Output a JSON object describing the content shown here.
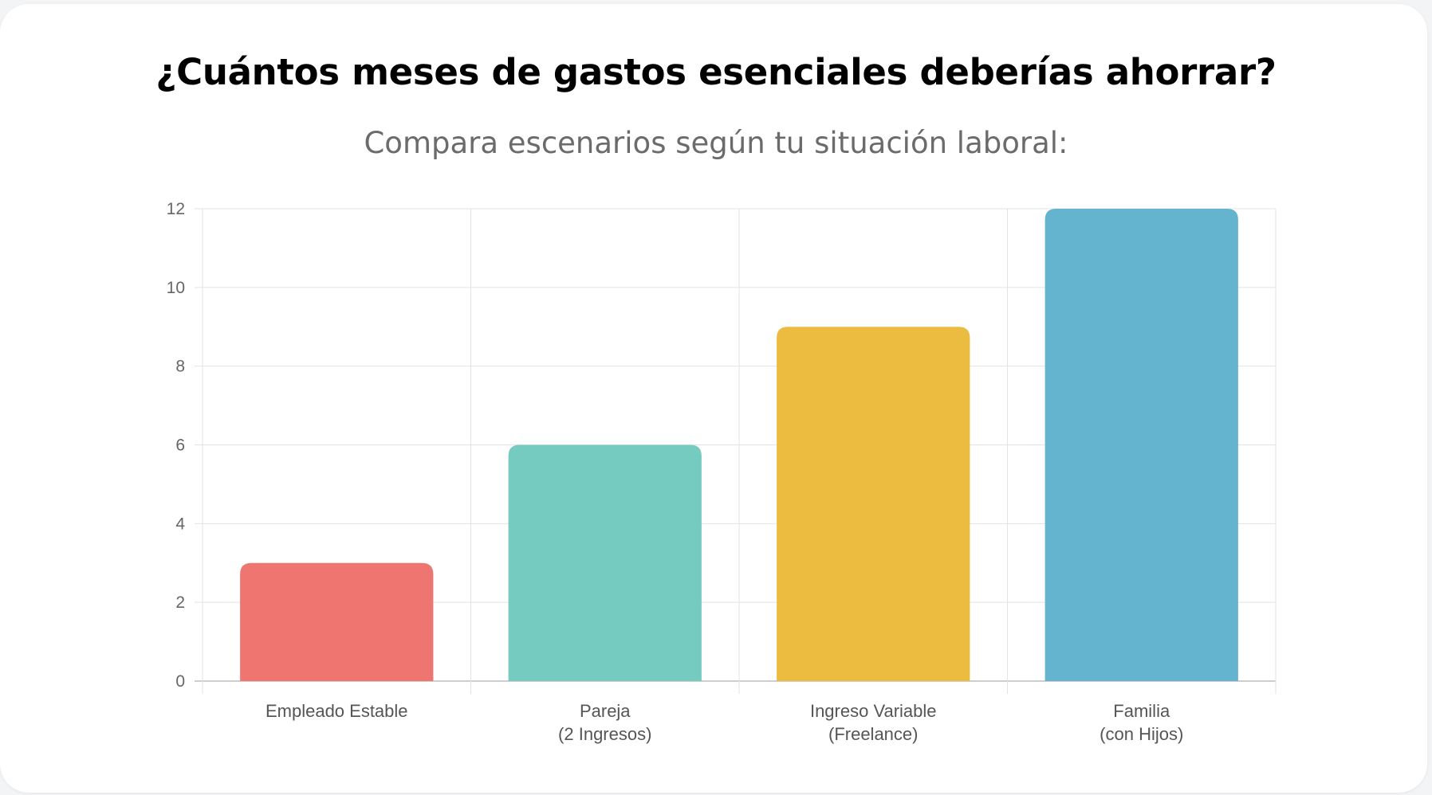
{
  "header": {
    "title": "¿Cuántos meses de gastos esenciales deberías ahorrar?",
    "subtitle": "Compara escenarios según tu situación laboral:"
  },
  "chart_data": {
    "type": "bar",
    "categories": [
      [
        "Empleado Estable"
      ],
      [
        "Pareja",
        "(2 Ingresos)"
      ],
      [
        "Ingreso Variable",
        "(Freelance)"
      ],
      [
        "Familia",
        "(con Hijos)"
      ]
    ],
    "values": [
      3,
      6,
      9,
      12
    ],
    "colors": [
      "#ef7571",
      "#76cbc1",
      "#ecbc41",
      "#64b4cf"
    ],
    "ylim": [
      0,
      12
    ],
    "yticks": [
      "0",
      "2",
      "4",
      "6",
      "8",
      "10",
      "12"
    ],
    "grid": true,
    "legend": "none"
  }
}
